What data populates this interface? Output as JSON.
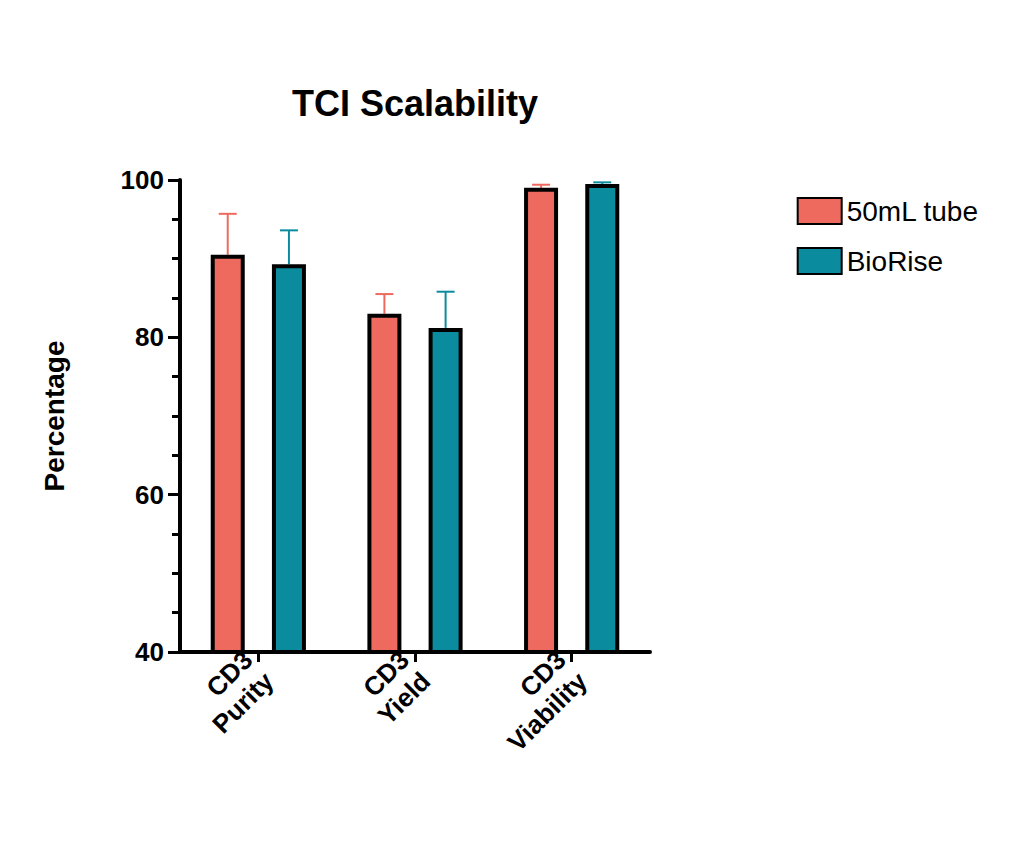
{
  "chart_data": {
    "type": "bar",
    "title": "TCI Scalability",
    "y_label": "Percentage",
    "categories": [
      "CD3\nPurity",
      "CD3\nYield",
      "CD3\nViability"
    ],
    "series": [
      {
        "name": "50mL tube",
        "color": "#ee6a5f",
        "values": [
          90.5,
          83.0,
          99.0
        ],
        "errors": [
          5.2,
          2.5,
          0.4
        ]
      },
      {
        "name": "BioRise",
        "color": "#0a8c9e",
        "values": [
          89.3,
          81.2,
          99.5
        ],
        "errors": [
          4.3,
          4.6,
          0.2
        ]
      }
    ],
    "ylim": [
      40,
      100
    ],
    "yticks": [
      40,
      60,
      80,
      100
    ],
    "grid": false,
    "legend": "right"
  }
}
